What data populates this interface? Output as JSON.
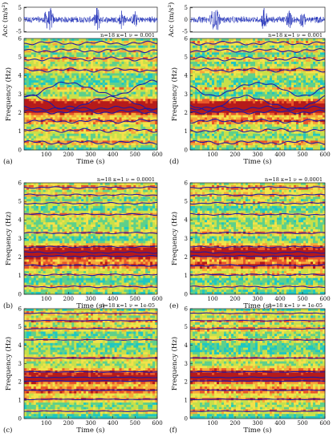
{
  "figure": {
    "panels": [
      {
        "id": "a",
        "label": "(a)",
        "annotation": "n=18   κ=1   ν = 0.001",
        "acc_signal": true
      },
      {
        "id": "d",
        "label": "(d)",
        "annotation": "n=18   κ=1   ν = 0.001",
        "acc_signal": true
      },
      {
        "id": "b",
        "label": "(b)",
        "annotation": "n=18   κ=1   ν = 0.0001",
        "acc_signal": false
      },
      {
        "id": "e",
        "label": "(e)",
        "annotation": "n=18   κ=1   ν = 0.0001",
        "acc_signal": false
      },
      {
        "id": "c",
        "label": "(c)",
        "annotation": "n=18   κ=1   ν = 1e-05",
        "acc_signal": false
      },
      {
        "id": "f",
        "label": "(f)",
        "annotation": "n=18   κ=1   ν = 1e-05",
        "acc_signal": false
      }
    ],
    "colors": {
      "track": "#1a1aa8",
      "signal": "#1f2fb8",
      "heat": [
        "#1fc7c2",
        "#5fd08a",
        "#c8e04a",
        "#f3e24a",
        "#f6a83a",
        "#e8572a",
        "#b61a1a"
      ]
    }
  },
  "chart_data": [
    {
      "type": "line",
      "title": "",
      "xlabel": "",
      "ylabel": "Acc (m/s²)",
      "xlim": [
        0,
        600
      ],
      "ylim": [
        -5,
        5
      ],
      "yticks": [
        "-5",
        "0",
        "5"
      ],
      "series": [
        {
          "values_description_only": false,
          "x": [
            0,
            60,
            120,
            180,
            240,
            300,
            360,
            420,
            480,
            540,
            600
          ],
          "y": [
            0.5,
            -1.2,
            1.8,
            -2.4,
            1.1,
            -4.8,
            2.0,
            -1.6,
            1.3,
            -0.9,
            0.6
          ]
        }
      ]
    },
    {
      "type": "heatmap",
      "title": "",
      "xlabel": "Time (s)",
      "ylabel": "Frequency (Hz)",
      "xlim": [
        0,
        600
      ],
      "ylim": [
        0,
        6
      ],
      "xticks": [
        "100",
        "200",
        "300",
        "400",
        "500",
        "600"
      ],
      "yticks": [
        "0",
        "1",
        "2",
        "3",
        "4",
        "5",
        "6"
      ],
      "track_frequencies_hz": [
        0.4,
        1.05,
        1.55,
        2.05,
        2.25,
        2.55,
        3.3,
        4.3,
        4.9,
        5.35,
        5.75
      ]
    }
  ]
}
